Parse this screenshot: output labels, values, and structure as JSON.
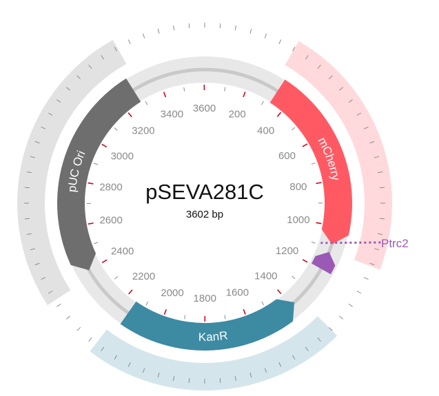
{
  "plasmid": {
    "name": "pSEVA281C",
    "length_label": "3602 bp",
    "length_bp": 3602
  },
  "colors": {
    "backbone": "#e8e8e8",
    "backbone_line": "#c9c9c9",
    "tick": "#8a8a8a",
    "tick_major": "#d0021b",
    "tick_label": "#8a8a8a"
  },
  "tick_labels": [
    "200",
    "400",
    "600",
    "800",
    "1000",
    "1200",
    "1400",
    "1600",
    "1800",
    "2000",
    "2200",
    "2400",
    "2600",
    "2800",
    "3000",
    "3200",
    "3400",
    "3600"
  ],
  "features": [
    {
      "name": "mCherry",
      "start": 330,
      "end": 1080,
      "color": "#ff5a64",
      "shade": "#ffd9dc",
      "direction": "forward"
    },
    {
      "name": "KanR",
      "start": 1380,
      "end": 2150,
      "color": "#3d8aa3",
      "shade": "#d4e6ec",
      "direction": "reverse"
    },
    {
      "name": "pUC Ori",
      "start": 2400,
      "end": 3280,
      "color": "#6e6e6e",
      "shade": "#e2e2e2",
      "direction": "reverse"
    }
  ],
  "primers": [
    {
      "name": "Ptrc2",
      "start": 1115,
      "end": 1195,
      "color": "#9b59b6"
    }
  ]
}
